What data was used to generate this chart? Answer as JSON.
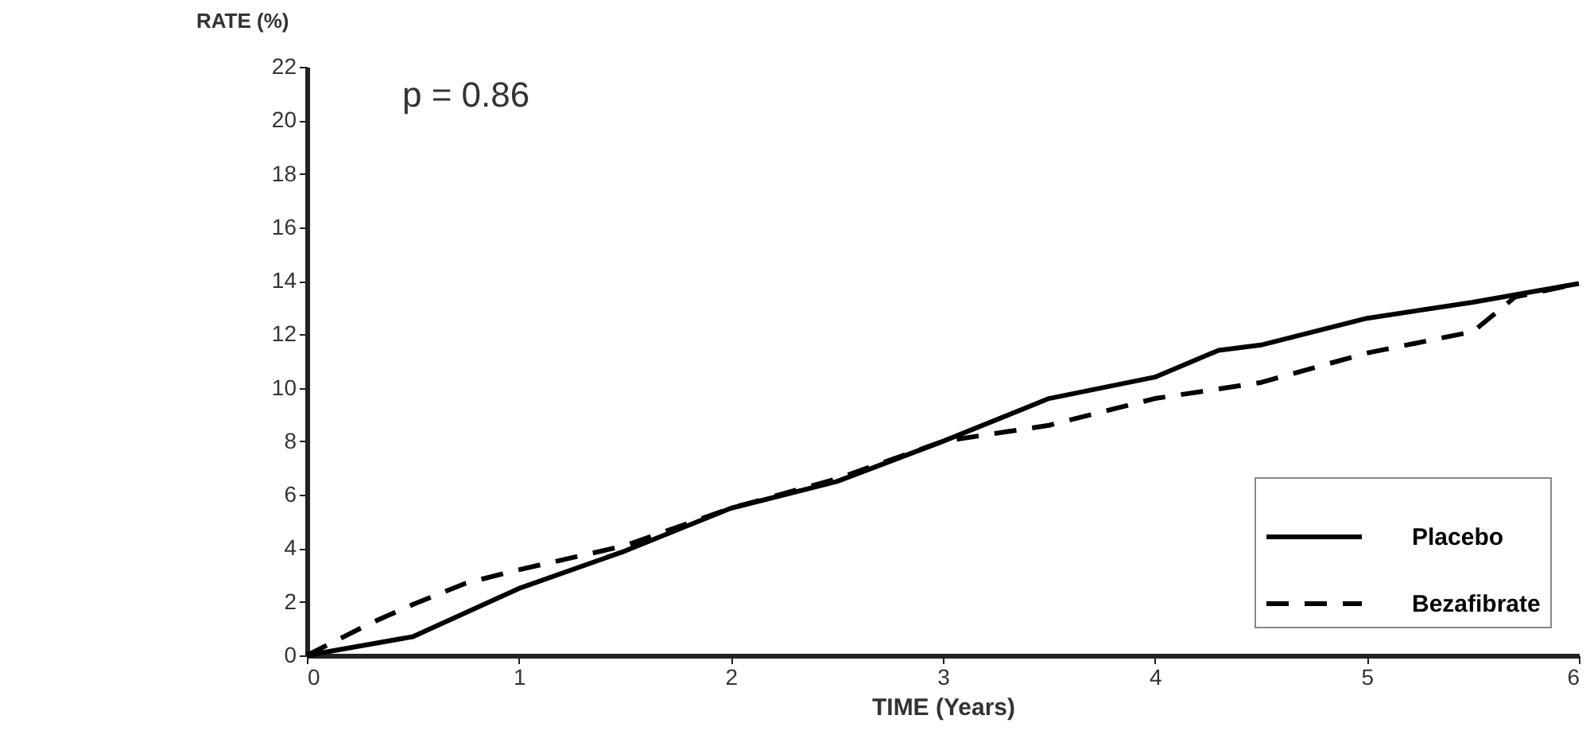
{
  "chart_data": {
    "type": "line",
    "xlabel": "TIME (Years)",
    "ylabel": "RATE (%)",
    "annotations": [
      "p = 0.86"
    ],
    "xlim": [
      0,
      6
    ],
    "xticks": [
      0,
      1,
      2,
      3,
      4,
      5,
      6
    ],
    "ylim": [
      0,
      22
    ],
    "yticks": [
      0,
      2,
      4,
      6,
      8,
      10,
      12,
      14,
      16,
      18,
      20,
      22
    ],
    "grid": false,
    "legend": "bottom right",
    "marker": "none",
    "series": [
      {
        "name": "Placebo",
        "color": "#000000",
        "line_style": "solid",
        "x": [
          0,
          0.5,
          1,
          1.5,
          2,
          2.5,
          3,
          3.5,
          4,
          4.3,
          4.5,
          5,
          5.5,
          6
        ],
        "values": [
          0,
          0.7,
          2.5,
          3.9,
          5.5,
          6.5,
          8,
          9.6,
          10.4,
          11.4,
          11.6,
          12.6,
          13.2,
          13.9
        ]
      },
      {
        "name": "Bezafibrate",
        "color": "#000000",
        "line_style": "dashed",
        "x": [
          0,
          0.3,
          0.5,
          0.75,
          1,
          1.5,
          2,
          2.5,
          3,
          3.5,
          4,
          4.5,
          5,
          5.5,
          5.7,
          6
        ],
        "values": [
          0,
          1.2,
          1.9,
          2.7,
          3.2,
          4.1,
          5.5,
          6.6,
          8,
          8.6,
          9.6,
          10.2,
          11.3,
          12.1,
          13.4,
          13.9
        ]
      }
    ]
  }
}
